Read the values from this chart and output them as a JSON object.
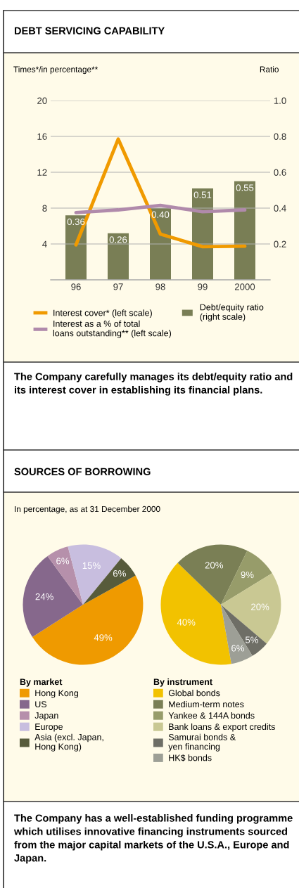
{
  "chart_data": [
    {
      "type": "bar",
      "title": "DEBT SERVICING CAPABILITY",
      "ylabel": "Times*/in percentage**",
      "y2label": "Ratio",
      "categories": [
        "96",
        "97",
        "98",
        "99",
        "2000"
      ],
      "series": [
        {
          "name": "Interest cover* (left scale)",
          "type": "line",
          "color": "#f09a00",
          "values": [
            3.9,
            15.7,
            5.1,
            3.7,
            3.75
          ]
        },
        {
          "name": "Interest as a % of total\nloans outstanding** (left scale)",
          "type": "line",
          "color": "#b08aab",
          "values": [
            7.5,
            7.8,
            8.3,
            7.6,
            7.8
          ]
        },
        {
          "name": "Debt/equity ratio\n(right scale)",
          "type": "bar",
          "axis": "y2",
          "color": "#797e55",
          "values": [
            0.36,
            0.26,
            0.4,
            0.51,
            0.55
          ],
          "value_labels": [
            "0.36",
            "0.26",
            "0.40",
            "0.51",
            "0.55"
          ]
        }
      ],
      "ylim": [
        0,
        20
      ],
      "yticks": [
        4,
        8,
        12,
        16,
        20
      ],
      "y2lim": [
        0,
        1
      ],
      "y2ticks": [
        {
          "value": 0.2,
          "label": "0.2"
        },
        {
          "value": 0.4,
          "label": "0.4"
        },
        {
          "value": 0.6,
          "label": "0.6"
        },
        {
          "value": 0.8,
          "label": "0.8"
        },
        {
          "value": 1,
          "label": "1.0"
        }
      ],
      "grid": "y",
      "legend": "bottom",
      "line_style": "solid",
      "marker": "none",
      "annotations": [
        "The Company carefully manages its debt/equity ratio and its interest cover in establishing its financial plans."
      ]
    },
    {
      "type": "pie",
      "title": "SOURCES OF BORROWING",
      "subtitle": "In percentage, as at 31 December 2000",
      "legend_title": "By market",
      "categories": [
        "Hong Kong",
        "US",
        "Japan",
        "Europe",
        "Asia (excl. Japan,\nHong Kong)"
      ],
      "values": [
        49,
        24,
        6,
        15,
        6
      ],
      "colors": [
        "#ef9a00",
        "#86688c",
        "#b690ab",
        "#c8bedf",
        "#575b3b"
      ],
      "value_labels": [
        "49%",
        "24%",
        "6%",
        "15%",
        "6%"
      ],
      "legend": "bottom"
    },
    {
      "type": "pie",
      "legend_title": "By instrument",
      "categories": [
        "Global bonds",
        "Medium-term notes",
        "Yankee & 144A bonds",
        "Bank loans & export credits",
        "Samurai bonds &\nyen financing",
        "HK$ bonds"
      ],
      "values": [
        40,
        20,
        9,
        20,
        5,
        6
      ],
      "colors": [
        "#f2c200",
        "#7a7f55",
        "#979c6a",
        "#c9c893",
        "#6e6e66",
        "#9d9f96"
      ],
      "value_labels": [
        "40%",
        "20%",
        "9%",
        "20%",
        "5%",
        "6%"
      ],
      "legend": "bottom",
      "annotations": [
        "The Company has a well-established funding programme which utilises innovative financing instruments sourced from the major capital markets of the U.S.A., Europe and Japan."
      ]
    }
  ]
}
